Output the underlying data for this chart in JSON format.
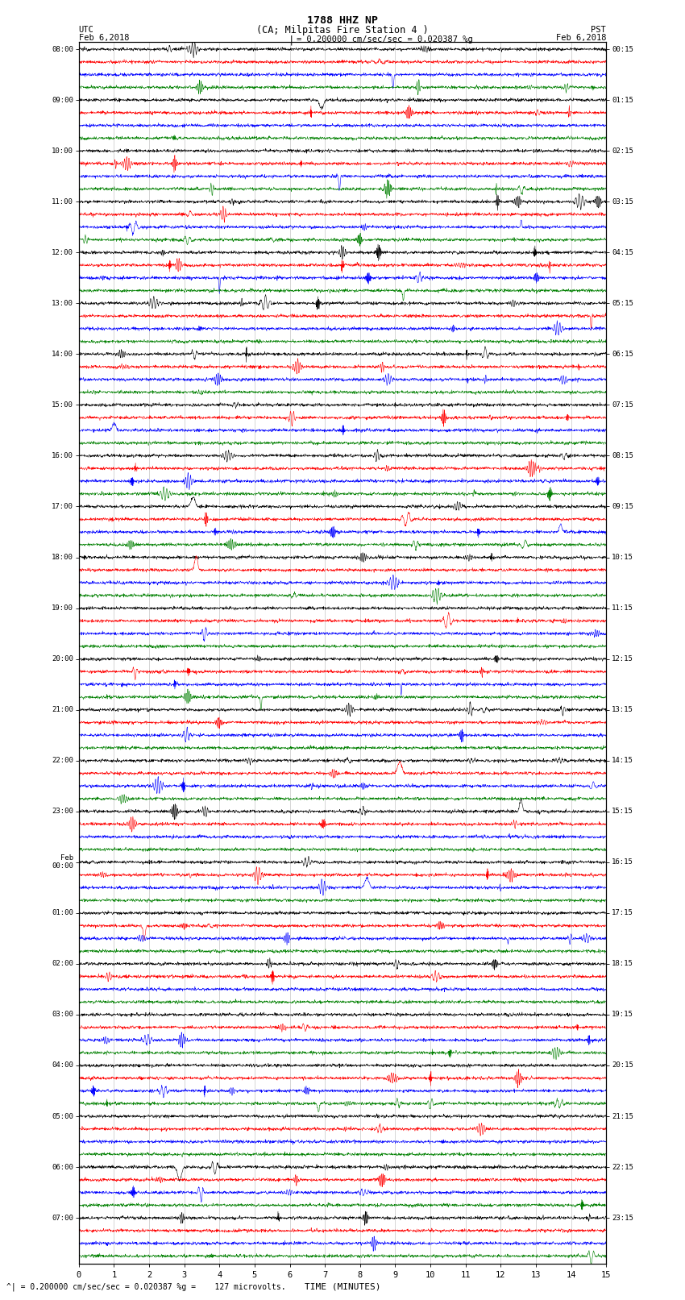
{
  "title_line1": "1788 HHZ NP",
  "title_line2": "(CA; Milpitas Fire Station 4 )",
  "scale_text": "= 0.200000 cm/sec/sec = 0.020387 %g",
  "footer_text": "^| = 0.200000 cm/sec/sec = 0.020387 %g =    127 microvolts.",
  "xlabel": "TIME (MINUTES)",
  "xlim": [
    0,
    15
  ],
  "xticks": [
    0,
    1,
    2,
    3,
    4,
    5,
    6,
    7,
    8,
    9,
    10,
    11,
    12,
    13,
    14,
    15
  ],
  "utc_times": [
    "08:00",
    "",
    "",
    "",
    "09:00",
    "",
    "",
    "",
    "10:00",
    "",
    "",
    "",
    "11:00",
    "",
    "",
    "",
    "12:00",
    "",
    "",
    "",
    "13:00",
    "",
    "",
    "",
    "14:00",
    "",
    "",
    "",
    "15:00",
    "",
    "",
    "",
    "16:00",
    "",
    "",
    "",
    "17:00",
    "",
    "",
    "",
    "18:00",
    "",
    "",
    "",
    "19:00",
    "",
    "",
    "",
    "20:00",
    "",
    "",
    "",
    "21:00",
    "",
    "",
    "",
    "22:00",
    "",
    "",
    "",
    "23:00",
    "",
    "",
    "",
    "Feb\n00:00",
    "",
    "",
    "",
    "01:00",
    "",
    "",
    "",
    "02:00",
    "",
    "",
    "",
    "03:00",
    "",
    "",
    "",
    "04:00",
    "",
    "",
    "",
    "05:00",
    "",
    "",
    "",
    "06:00",
    "",
    "",
    "",
    "07:00",
    "",
    "",
    ""
  ],
  "pst_times": [
    "00:15",
    "",
    "",
    "",
    "01:15",
    "",
    "",
    "",
    "02:15",
    "",
    "",
    "",
    "03:15",
    "",
    "",
    "",
    "04:15",
    "",
    "",
    "",
    "05:15",
    "",
    "",
    "",
    "06:15",
    "",
    "",
    "",
    "07:15",
    "",
    "",
    "",
    "08:15",
    "",
    "",
    "",
    "09:15",
    "",
    "",
    "",
    "10:15",
    "",
    "",
    "",
    "11:15",
    "",
    "",
    "",
    "12:15",
    "",
    "",
    "",
    "13:15",
    "",
    "",
    "",
    "14:15",
    "",
    "",
    "",
    "15:15",
    "",
    "",
    "",
    "16:15",
    "",
    "",
    "",
    "17:15",
    "",
    "",
    "",
    "18:15",
    "",
    "",
    "",
    "19:15",
    "",
    "",
    "",
    "20:15",
    "",
    "",
    "",
    "21:15",
    "",
    "",
    "",
    "22:15",
    "",
    "",
    "",
    "23:15",
    "",
    "",
    ""
  ],
  "n_rows": 96,
  "trace_color_cycle": [
    "black",
    "red",
    "blue",
    "green"
  ],
  "bg_color": "white",
  "grid_color": "#aaaaaa",
  "n_minor_gridlines": 14,
  "amp_scale": 0.38,
  "base_noise_std": 0.15,
  "spike_prob": 0.7,
  "n_points": 2000
}
